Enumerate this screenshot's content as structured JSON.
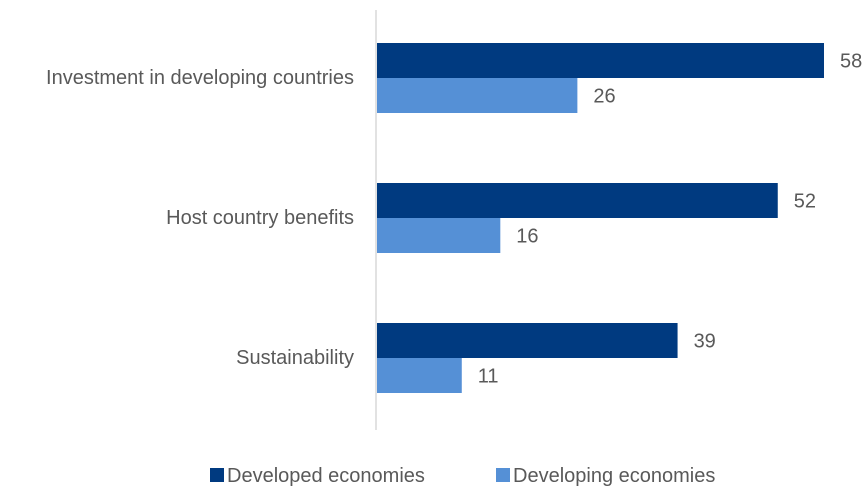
{
  "chart_data": {
    "type": "bar",
    "orientation": "horizontal",
    "categories": [
      "Investment in developing countries",
      "Host country benefits",
      "Sustainability"
    ],
    "series": [
      {
        "name": "Developed economies",
        "values": [
          58,
          52,
          39
        ],
        "color": "#003a80"
      },
      {
        "name": "Developing economies",
        "values": [
          26,
          16,
          11
        ],
        "color": "#5590d6"
      }
    ],
    "xlim": [
      0,
      58
    ],
    "grid": false,
    "legend_position": "bottom",
    "data_labels": true
  },
  "colors": {
    "axis": "#d9d9d9",
    "text": "#595959"
  }
}
